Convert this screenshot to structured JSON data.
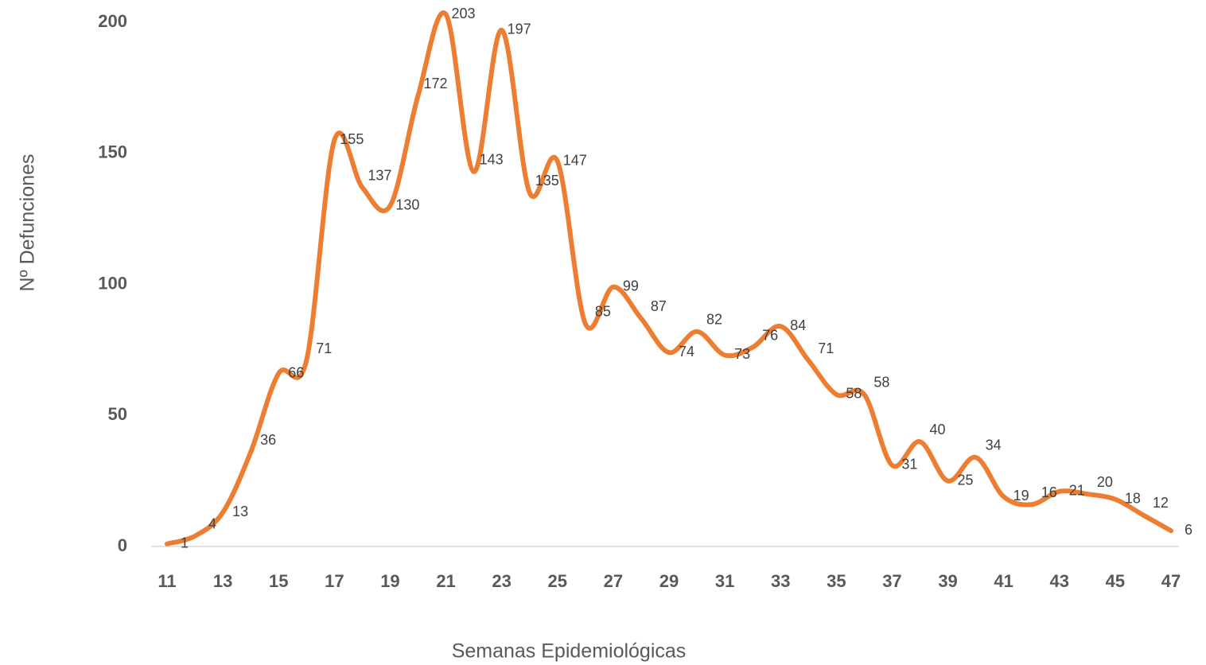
{
  "chart_data": {
    "type": "line",
    "x_label": "Semanas Epidemiológicas",
    "y_label": "Nº Defunciones",
    "categories": [
      "11",
      null,
      "13",
      null,
      "15",
      null,
      "17",
      null,
      "19",
      null,
      "21",
      null,
      "23",
      null,
      "25",
      null,
      "27",
      null,
      "29",
      null,
      "31",
      null,
      "33",
      null,
      "35",
      null,
      "37",
      null,
      "39",
      null,
      "41",
      null,
      "43",
      null,
      "45",
      null,
      "47"
    ],
    "series": [
      {
        "name": "Nº Defunciones",
        "color": "#ED7D31",
        "values": [
          1,
          4,
          13,
          36,
          66,
          71,
          155,
          137,
          130,
          172,
          203,
          143,
          197,
          135,
          147,
          85,
          99,
          87,
          74,
          82,
          73,
          76,
          84,
          71,
          58,
          58,
          31,
          40,
          25,
          34,
          19,
          16,
          21,
          20,
          18,
          12,
          6
        ]
      }
    ],
    "ylim": [
      0,
      200
    ],
    "yticks": [
      0,
      50,
      100,
      150,
      200
    ],
    "grid": false
  }
}
